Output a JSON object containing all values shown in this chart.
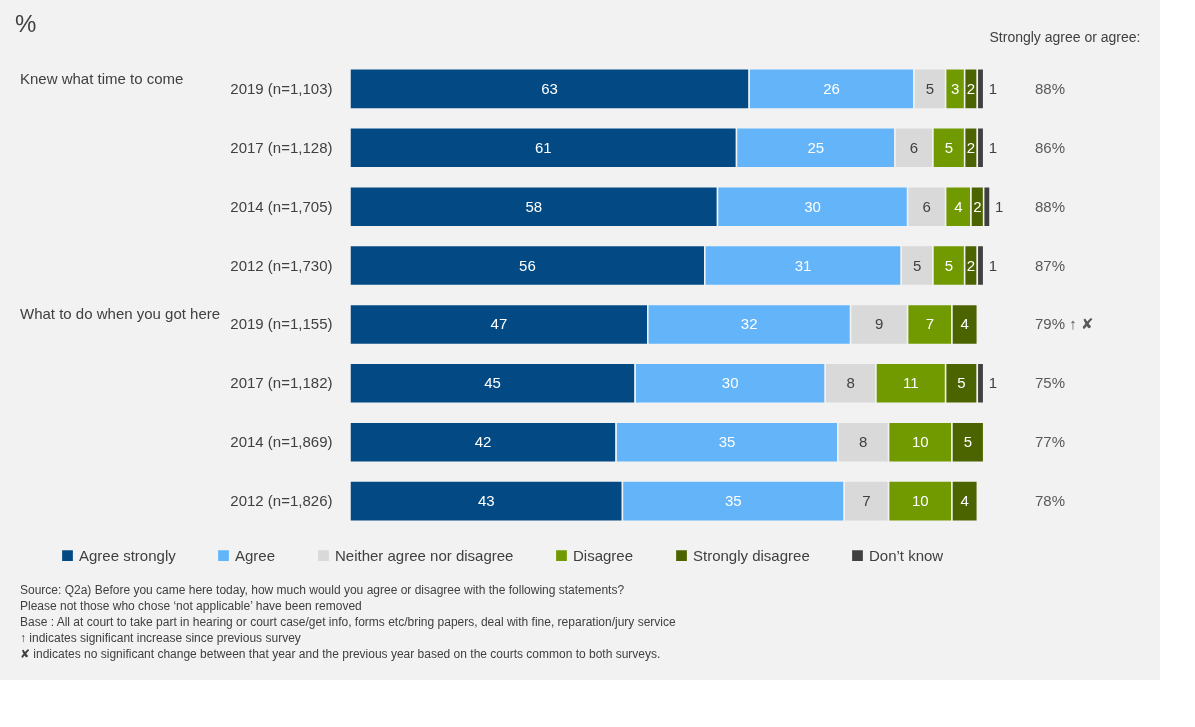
{
  "chart_data": {
    "type": "bar",
    "orientation": "horizontal",
    "stacked": true,
    "data_labels": true,
    "legend": "bottom",
    "title": "%",
    "categories": [
      "2019 (n=1,103)",
      "2017  (n=1,128)",
      "2014 (n=1,705)",
      "2012 (n=1,730)",
      "2019 (n=1,155)",
      "2017  (n=1,182)",
      "2014 (n=1,869)",
      "2012 (n=1,826)"
    ],
    "series": [
      {
        "name": "Agree strongly",
        "color": "#034a85",
        "values": [
          63,
          61,
          58,
          56,
          47,
          45,
          42,
          43
        ]
      },
      {
        "name": "Agree",
        "color": "#63b4f8",
        "values": [
          26,
          25,
          30,
          31,
          32,
          30,
          35,
          35
        ]
      },
      {
        "name": "Neither agree nor disagree",
        "color": "#d9d9d9",
        "values": [
          5,
          6,
          6,
          5,
          9,
          8,
          8,
          7
        ]
      },
      {
        "name": "Disagree",
        "color": "#709a00",
        "values": [
          3,
          5,
          4,
          5,
          7,
          11,
          10,
          10
        ]
      },
      {
        "name": "Strongly disagree",
        "color": "#4c6400",
        "values": [
          2,
          2,
          2,
          2,
          4,
          5,
          5,
          4
        ]
      },
      {
        "name": "Don’t know",
        "color": "#404040",
        "values": [
          1,
          1,
          1,
          1,
          null,
          1,
          null,
          null
        ]
      }
    ],
    "annotations": [
      "Strongly agree or agree:",
      "88%",
      "86%",
      "88%",
      "87%",
      "79% ↑ ✘",
      "75%",
      "77%",
      "78%",
      "Knew what time to come",
      "What to do when you got here",
      "Source:  Q2a) Before you came here today, how much would you agree or disagree with the following statements?",
      "Please not those who chose ‘not applicable’ have been removed",
      "Base : All at court  to take part in hearing or court  case/get info, forms etc/bring papers, deal with fine, reparation/jury service",
      "↑ indicates significant increase since previous survey",
      "✘ indicates no significant change between that year and the previous year based on the courts common to both surveys."
    ]
  }
}
